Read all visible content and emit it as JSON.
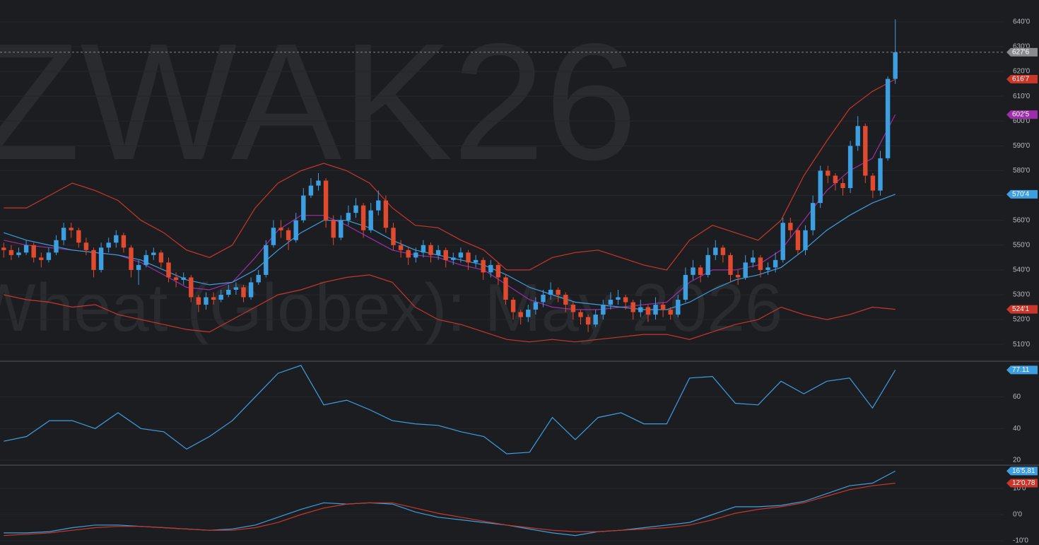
{
  "chart_data": {
    "type": "candlestick",
    "watermark_symbol": "ZWAK26",
    "watermark_name": "Wheat (Globex): May 2026",
    "up_color": "#3d9ee0",
    "down_color": "#e04a2f",
    "ylim": [
      503.5,
      648.8
    ],
    "yticks": [
      {
        "value": 510,
        "label": "510'0"
      },
      {
        "value": 520,
        "label": "520'0"
      },
      {
        "value": 530,
        "label": "530'0"
      },
      {
        "value": 540,
        "label": "540'0"
      },
      {
        "value": 550,
        "label": "550'0"
      },
      {
        "value": 560,
        "label": "560'0"
      },
      {
        "value": 570,
        "label": "570'0"
      },
      {
        "value": 580,
        "label": "580'0"
      },
      {
        "value": 590,
        "label": "590'0"
      },
      {
        "value": 600,
        "label": "600'0"
      },
      {
        "value": 610,
        "label": "610'0"
      },
      {
        "value": 620,
        "label": "620'0"
      },
      {
        "value": 630,
        "label": "630'0"
      },
      {
        "value": 640,
        "label": "640'0"
      }
    ],
    "last_label": "627'6",
    "candles": [
      [
        549,
        551,
        545,
        548
      ],
      [
        548,
        550,
        544,
        546
      ],
      [
        546,
        549,
        545,
        547
      ],
      [
        547,
        552,
        546,
        550
      ],
      [
        550,
        551,
        543,
        545
      ],
      [
        545,
        547,
        541,
        544
      ],
      [
        544,
        549,
        543,
        547
      ],
      [
        547,
        554,
        546,
        552
      ],
      [
        552,
        559,
        550,
        557
      ],
      [
        557,
        559,
        553,
        556
      ],
      [
        556,
        557,
        549,
        551
      ],
      [
        551,
        553,
        546,
        548
      ],
      [
        548,
        549,
        537,
        540
      ],
      [
        540,
        551,
        539,
        549
      ],
      [
        549,
        553,
        547,
        551
      ],
      [
        551,
        556,
        549,
        554
      ],
      [
        554,
        555,
        547,
        549
      ],
      [
        549,
        550,
        537,
        540
      ],
      [
        540,
        544,
        534,
        542
      ],
      [
        542,
        548,
        541,
        546
      ],
      [
        546,
        549,
        544,
        547
      ],
      [
        547,
        548,
        541,
        543
      ],
      [
        543,
        545,
        535,
        537
      ],
      [
        537,
        539,
        533,
        536
      ],
      [
        536,
        539,
        534,
        537
      ],
      [
        537,
        538,
        527,
        529
      ],
      [
        529,
        530,
        523,
        526
      ],
      [
        526,
        531,
        524,
        529
      ],
      [
        529,
        531,
        526,
        528
      ],
      [
        528,
        532,
        527,
        530
      ],
      [
        530,
        534,
        529,
        532
      ],
      [
        532,
        535,
        530,
        533
      ],
      [
        533,
        534,
        527,
        529
      ],
      [
        529,
        537,
        528,
        535
      ],
      [
        535,
        540,
        534,
        538
      ],
      [
        538,
        552,
        537,
        550
      ],
      [
        550,
        560,
        549,
        557
      ],
      [
        557,
        560,
        553,
        556
      ],
      [
        556,
        557,
        548,
        552
      ],
      [
        552,
        563,
        551,
        560
      ],
      [
        560,
        573,
        559,
        570
      ],
      [
        570,
        577,
        569,
        574
      ],
      [
        574,
        579,
        572,
        576
      ],
      [
        576,
        577,
        557,
        560
      ],
      [
        560,
        562,
        550,
        553
      ],
      [
        553,
        562,
        552,
        560
      ],
      [
        560,
        566,
        558,
        563
      ],
      [
        563,
        569,
        561,
        566
      ],
      [
        566,
        567,
        553,
        556
      ],
      [
        556,
        567,
        555,
        564
      ],
      [
        564,
        572,
        562,
        568
      ],
      [
        568,
        570,
        555,
        557
      ],
      [
        557,
        559,
        548,
        550
      ],
      [
        550,
        552,
        545,
        548
      ],
      [
        548,
        549,
        542,
        545
      ],
      [
        545,
        549,
        543,
        547
      ],
      [
        547,
        552,
        545,
        550
      ],
      [
        550,
        551,
        543,
        546
      ],
      [
        546,
        550,
        544,
        548
      ],
      [
        548,
        549,
        541,
        544
      ],
      [
        544,
        547,
        542,
        545
      ],
      [
        545,
        549,
        543,
        547
      ],
      [
        547,
        548,
        540,
        543
      ],
      [
        543,
        546,
        541,
        544
      ],
      [
        544,
        545,
        536,
        539
      ],
      [
        539,
        544,
        537,
        542
      ],
      [
        542,
        543,
        534,
        537
      ],
      [
        537,
        538,
        526,
        528
      ],
      [
        528,
        529,
        520,
        523
      ],
      [
        523,
        524,
        518,
        521
      ],
      [
        521,
        526,
        519,
        524
      ],
      [
        524,
        529,
        522,
        527
      ],
      [
        527,
        532,
        525,
        530
      ],
      [
        530,
        535,
        528,
        532
      ],
      [
        532,
        533,
        527,
        530
      ],
      [
        530,
        531,
        523,
        526
      ],
      [
        526,
        527,
        520,
        523
      ],
      [
        523,
        524,
        518,
        521
      ],
      [
        521,
        522,
        515,
        518
      ],
      [
        518,
        524,
        517,
        522
      ],
      [
        522,
        528,
        520,
        526
      ],
      [
        526,
        531,
        524,
        528
      ],
      [
        528,
        532,
        526,
        529
      ],
      [
        529,
        530,
        524,
        527
      ],
      [
        527,
        528,
        520,
        523
      ],
      [
        523,
        528,
        521,
        525
      ],
      [
        525,
        526,
        519,
        522
      ],
      [
        522,
        529,
        520,
        526
      ],
      [
        526,
        527,
        521,
        524
      ],
      [
        524,
        525,
        520,
        522
      ],
      [
        522,
        530,
        521,
        528
      ],
      [
        528,
        541,
        527,
        538
      ],
      [
        538,
        544,
        536,
        541
      ],
      [
        541,
        542,
        535,
        538
      ],
      [
        538,
        549,
        537,
        546
      ],
      [
        546,
        552,
        544,
        549
      ],
      [
        549,
        550,
        543,
        546
      ],
      [
        546,
        547,
        535,
        538
      ],
      [
        538,
        540,
        534,
        537
      ],
      [
        537,
        546,
        536,
        543
      ],
      [
        543,
        548,
        541,
        545
      ],
      [
        545,
        546,
        537,
        540
      ],
      [
        540,
        543,
        538,
        541
      ],
      [
        541,
        547,
        539,
        544
      ],
      [
        544,
        561,
        543,
        559
      ],
      [
        559,
        561,
        553,
        556
      ],
      [
        556,
        557,
        546,
        548
      ],
      [
        548,
        558,
        546,
        556
      ],
      [
        556,
        570,
        554,
        567
      ],
      [
        567,
        582,
        565,
        580
      ],
      [
        580,
        582,
        575,
        578
      ],
      [
        578,
        579,
        572,
        575
      ],
      [
        575,
        577,
        570,
        573
      ],
      [
        573,
        592,
        571,
        590
      ],
      [
        590,
        602,
        588,
        598
      ],
      [
        598,
        599,
        575,
        578
      ],
      [
        578,
        579,
        569,
        572
      ],
      [
        572,
        588,
        570,
        585
      ],
      [
        585,
        618,
        584,
        617
      ],
      [
        617,
        641,
        615,
        627.75
      ]
    ],
    "overlays": [
      {
        "color": "#c8372a",
        "last_label": "616'7",
        "values": [
          565,
          565,
          570,
          575,
          572,
          568,
          560,
          555,
          548,
          545,
          550,
          565,
          575,
          580,
          583,
          580,
          575,
          565,
          558,
          557,
          552,
          548,
          540,
          540,
          545,
          547,
          548,
          545,
          542,
          540,
          552,
          558,
          555,
          552,
          560,
          578,
          592,
          605,
          612,
          616.875
        ]
      },
      {
        "color": "#9b2fa8",
        "last_label": "602'5",
        "values": [
          552,
          550,
          549,
          548,
          547,
          546,
          543,
          538,
          533,
          532,
          535,
          545,
          556,
          562,
          562,
          558,
          553,
          548,
          546,
          545,
          542,
          540,
          534,
          528,
          525,
          524,
          524,
          525,
          526,
          527,
          535,
          540,
          540,
          542,
          548,
          560,
          572,
          580,
          585,
          602.625
        ]
      },
      {
        "color": "#3d9ee0",
        "last_label": "570'4",
        "values": [
          555,
          552,
          550,
          548,
          547,
          546,
          544,
          540,
          536,
          534,
          535,
          540,
          548,
          555,
          560,
          560,
          557,
          552,
          548,
          546,
          544,
          542,
          538,
          533,
          530,
          527,
          526,
          525,
          524,
          524,
          527,
          532,
          536,
          538,
          541,
          548,
          556,
          562,
          567,
          570.5
        ]
      },
      {
        "color": "#c8372a",
        "last_label": "524'1",
        "values": [
          530,
          528,
          527,
          525,
          526,
          522,
          520,
          518,
          516,
          515,
          520,
          525,
          530,
          532,
          535,
          537,
          538,
          535,
          525,
          520,
          518,
          515,
          512,
          511,
          512,
          511,
          512,
          513,
          514,
          514,
          512,
          515,
          518,
          520,
          525,
          522,
          520,
          522,
          525,
          524.125
        ]
      }
    ],
    "rsi": {
      "color": "#3d9ee0",
      "ylim": [
        17.3,
        82.2
      ],
      "yticks": [
        20,
        40,
        60
      ],
      "last_label": "77.11",
      "values": [
        32,
        35,
        45,
        45,
        40,
        50,
        40,
        38,
        27,
        35,
        45,
        60,
        75,
        80,
        55,
        58,
        52,
        45,
        43,
        42,
        38,
        35,
        24,
        25,
        47,
        33,
        47,
        50,
        43,
        43,
        72,
        73,
        56,
        55,
        70,
        62,
        70,
        72,
        53,
        77.11
      ]
    },
    "oscillator": {
      "ylim": [
        -11.6,
        18.6
      ],
      "yticks": [
        {
          "value": -10,
          "label": "-10'0"
        },
        {
          "value": 0,
          "label": "0'0"
        },
        {
          "value": 10,
          "label": "10'0"
        }
      ],
      "series": [
        {
          "color": "#3d9ee0",
          "last_label": "16'5,81",
          "values": [
            -7,
            -7,
            -6.5,
            -5,
            -4,
            -4,
            -4.5,
            -5,
            -5.5,
            -6,
            -5.5,
            -4,
            -1,
            2,
            4.5,
            4,
            4.5,
            4,
            1,
            -1,
            -2,
            -3,
            -4,
            -5.5,
            -7,
            -8,
            -6.5,
            -6,
            -5,
            -4,
            -3,
            0,
            3,
            3,
            3.5,
            5,
            8,
            11,
            12,
            16.6
          ]
        },
        {
          "color": "#c8372a",
          "last_label": "12'0,78",
          "values": [
            -8,
            -7.5,
            -7,
            -6,
            -5,
            -4.5,
            -4.5,
            -5,
            -5.5,
            -6,
            -6,
            -5,
            -3,
            0,
            2.5,
            4,
            4.5,
            4.5,
            2.5,
            0.5,
            -1,
            -2.5,
            -4,
            -5,
            -6,
            -6.5,
            -6.5,
            -6,
            -5.5,
            -5,
            -4,
            -2,
            0.5,
            2,
            3,
            4.5,
            7,
            9.5,
            11,
            12.0
          ]
        }
      ]
    }
  }
}
